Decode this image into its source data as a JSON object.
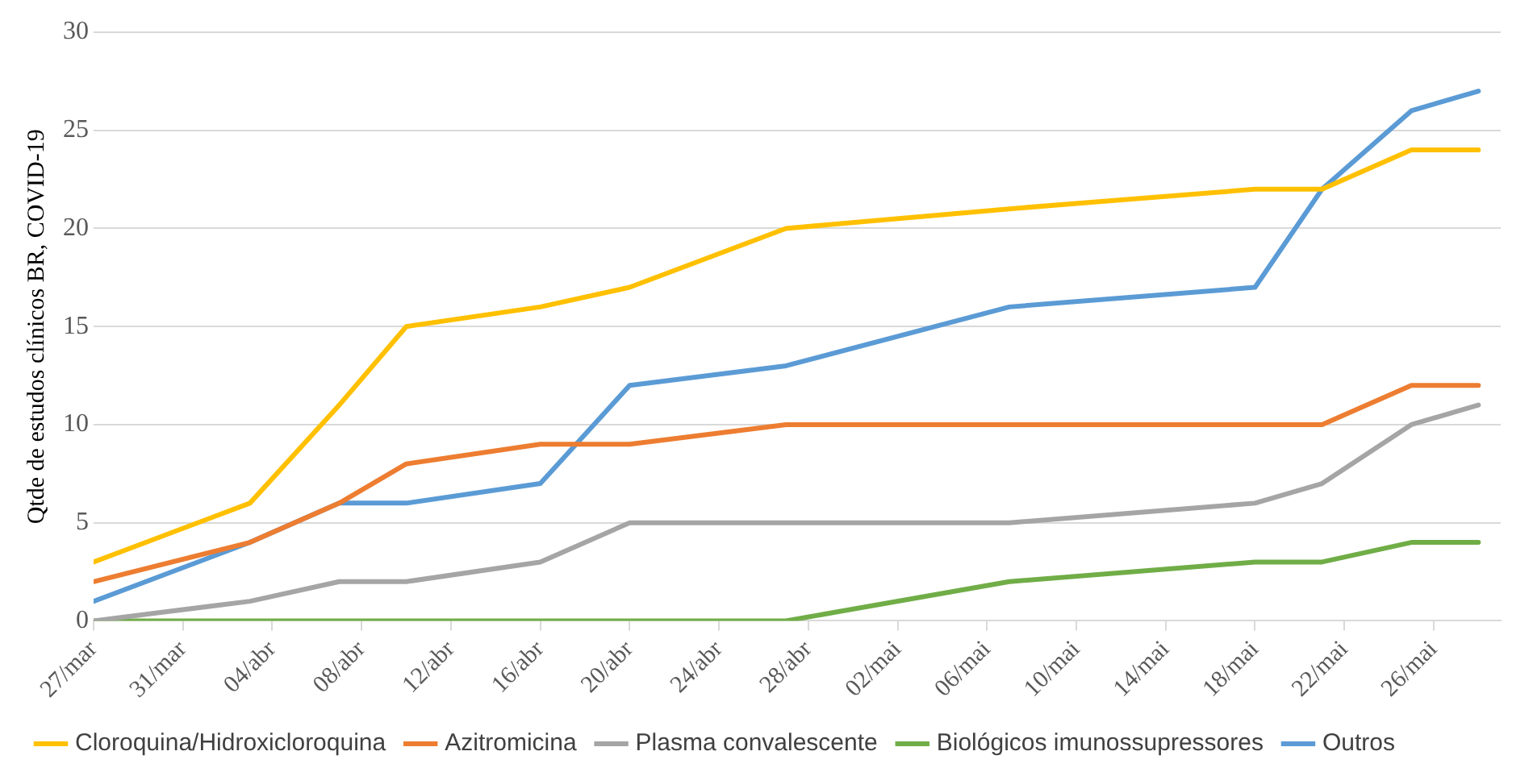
{
  "chart_data": {
    "type": "line",
    "ylabel": "Qtde de estudos clínicos BR, COVID-19",
    "x": [
      "--03-27",
      "--04-03",
      "--04-07",
      "--04-10",
      "--04-16",
      "--04-20",
      "--04-27",
      "--05-07",
      "--05-18",
      "--05-21",
      "--05-25",
      "--05-28"
    ],
    "xlim": [
      "--03-27",
      "--05-29"
    ],
    "xticks": [
      {
        "value": "--03-27",
        "label": "27/mar"
      },
      {
        "value": "--03-31",
        "label": "31/mar"
      },
      {
        "value": "--04-04",
        "label": "04/abr"
      },
      {
        "value": "--04-08",
        "label": "08/abr"
      },
      {
        "value": "--04-12",
        "label": "12/abr"
      },
      {
        "value": "--04-16",
        "label": "16/abr"
      },
      {
        "value": "--04-20",
        "label": "20/abr"
      },
      {
        "value": "--04-24",
        "label": "24/abr"
      },
      {
        "value": "--04-28",
        "label": "28/abr"
      },
      {
        "value": "--05-02",
        "label": "02/mai"
      },
      {
        "value": "--05-06",
        "label": "06/mai"
      },
      {
        "value": "--05-10",
        "label": "10/mai"
      },
      {
        "value": "--05-14",
        "label": "14/mai"
      },
      {
        "value": "--05-18",
        "label": "18/mai"
      },
      {
        "value": "--05-22",
        "label": "22/mai"
      },
      {
        "value": "--05-26",
        "label": "26/mai"
      }
    ],
    "ylim": [
      0,
      30
    ],
    "yticks": [
      0,
      5,
      10,
      15,
      20,
      25,
      30
    ],
    "grid": "y",
    "legend": "bottom",
    "marker": "none",
    "line_style": "solid",
    "series": [
      {
        "name": "Cloroquina/Hidroxicloroquina",
        "color": "#ffc000",
        "values": [
          3,
          6,
          11,
          15,
          16,
          17,
          20,
          21,
          22,
          22,
          24,
          24
        ]
      },
      {
        "name": "Azitromicina",
        "color": "#ed7d31",
        "values": [
          2,
          4,
          6,
          8,
          9,
          9,
          10,
          10,
          10,
          10,
          12,
          12
        ]
      },
      {
        "name": "Plasma convalescente",
        "color": "#a5a5a5",
        "values": [
          0,
          1,
          2,
          2,
          3,
          5,
          5,
          5,
          6,
          7,
          10,
          11
        ]
      },
      {
        "name": "Biológicos imunossupressores",
        "color": "#70ad47",
        "values": [
          0,
          0,
          0,
          0,
          0,
          0,
          0,
          2,
          3,
          3,
          4,
          4
        ]
      },
      {
        "name": "Outros",
        "color": "#5b9bd5",
        "values": [
          1,
          4,
          6,
          6,
          7,
          12,
          13,
          16,
          17,
          22,
          26,
          27
        ]
      }
    ]
  }
}
